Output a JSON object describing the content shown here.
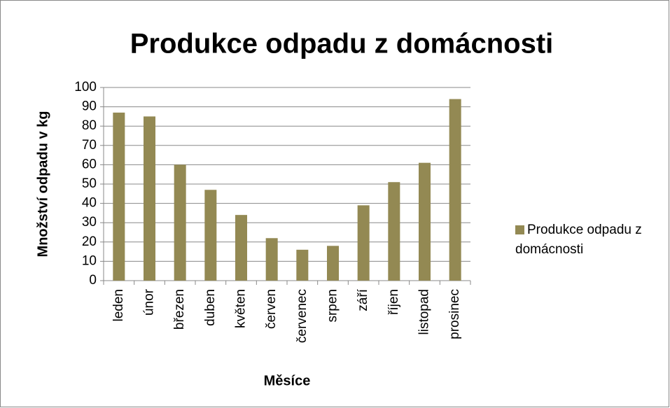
{
  "chart_data": {
    "type": "bar",
    "title": "Produkce odpadu z domácnosti",
    "x_label": "Měsíce",
    "y_label": "Množství odpadu v kg",
    "categories": [
      "leden",
      "únor",
      "březen",
      "duben",
      "květen",
      "červen",
      "červenec",
      "srpen",
      "září",
      "říjen",
      "listopad",
      "prosinec"
    ],
    "series": [
      {
        "name": "Produkce odpadu z domácnosti",
        "color": "#938953",
        "values": [
          87,
          85,
          60,
          47,
          34,
          22,
          16,
          18,
          39,
          51,
          61,
          94
        ]
      }
    ],
    "ylim": [
      0,
      100
    ],
    "yticks": [
      0,
      10,
      20,
      30,
      40,
      50,
      60,
      70,
      80,
      90,
      100
    ],
    "grid": true,
    "legend": "right"
  }
}
